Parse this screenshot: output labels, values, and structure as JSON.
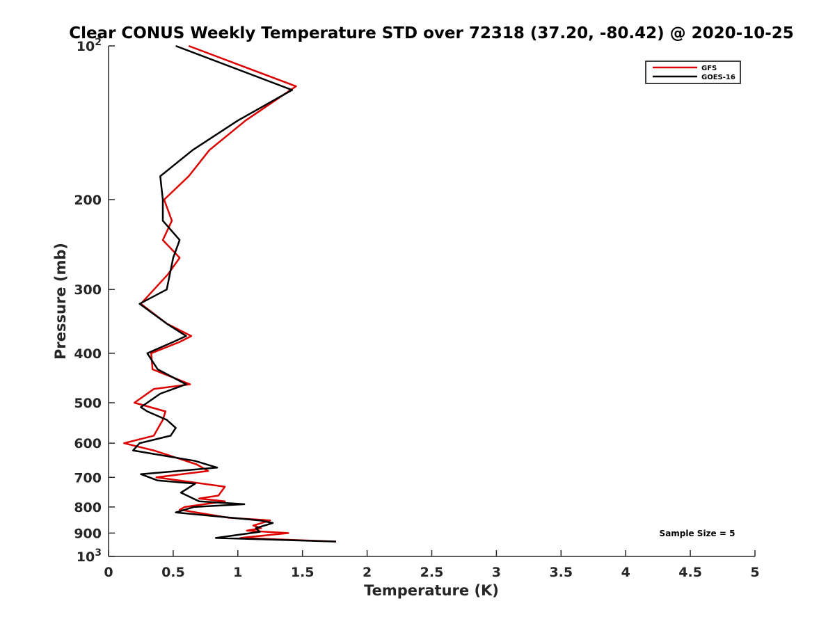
{
  "chart_data": {
    "type": "line",
    "title": "Clear CONUS Weekly Temperature STD over 72318 (37.20, -80.42) @ 2020-10-25",
    "xlabel": "Temperature (K)",
    "ylabel": "Pressure (mb)",
    "xlim": [
      0,
      5
    ],
    "ylim": [
      100,
      1000
    ],
    "y_scale": "log",
    "y_reversed": true,
    "grid": false,
    "legend_position": "top-right",
    "x_ticks": [
      0,
      0.5,
      1,
      1.5,
      2,
      2.5,
      3,
      3.5,
      4,
      4.5,
      5
    ],
    "x_tick_labels": [
      "0",
      "0.5",
      "1",
      "1.5",
      "2",
      "2.5",
      "3",
      "3.5",
      "4",
      "4.5",
      "5"
    ],
    "y_ticks": [
      100,
      200,
      300,
      400,
      500,
      600,
      700,
      800,
      900,
      1000
    ],
    "y_tick_labels": [
      {
        "base": "10",
        "sup": "2"
      },
      {
        "base": "200"
      },
      {
        "base": "300"
      },
      {
        "base": "400"
      },
      {
        "base": "500"
      },
      {
        "base": "600"
      },
      {
        "base": "700"
      },
      {
        "base": "800"
      },
      {
        "base": "900"
      },
      {
        "base": "10",
        "sup": "3"
      }
    ],
    "annotation": "Sample Size = 5",
    "series": [
      {
        "name": "GFS",
        "color": "#dd0000",
        "x": [
          0.62,
          1.45,
          1.06,
          0.78,
          0.62,
          0.43,
          0.49,
          0.42,
          0.55,
          0.46,
          0.25,
          0.45,
          0.64,
          0.55,
          0.33,
          0.34,
          0.63,
          0.35,
          0.2,
          0.44,
          0.42,
          0.35,
          0.12,
          0.35,
          0.68,
          0.77,
          0.37,
          0.9,
          0.85,
          0.7,
          0.9,
          0.59,
          0.55,
          0.93,
          1.25,
          1.12,
          1.18,
          1.07,
          1.39,
          1.02,
          1.76
        ],
        "y": [
          100,
          120,
          140,
          160,
          180,
          200,
          220,
          240,
          260,
          280,
          320,
          350,
          370,
          380,
          400,
          430,
          460,
          470,
          500,
          520,
          540,
          580,
          600,
          620,
          660,
          680,
          700,
          730,
          760,
          770,
          780,
          800,
          810,
          840,
          850,
          870,
          880,
          890,
          900,
          920,
          935
        ]
      },
      {
        "name": "GOES-16",
        "color": "#000000",
        "x": [
          0.52,
          1.42,
          1.0,
          0.65,
          0.4,
          0.42,
          0.42,
          0.55,
          0.5,
          0.45,
          0.24,
          0.45,
          0.6,
          0.5,
          0.3,
          0.38,
          0.6,
          0.4,
          0.25,
          0.3,
          0.45,
          0.52,
          0.48,
          0.24,
          0.19,
          0.67,
          0.84,
          0.25,
          0.38,
          0.67,
          0.56,
          0.7,
          1.05,
          0.66,
          0.52,
          1.17,
          1.27,
          1.14,
          1.17,
          0.83,
          1.76
        ],
        "y": [
          100,
          122,
          140,
          160,
          180,
          200,
          220,
          240,
          260,
          300,
          320,
          350,
          370,
          380,
          400,
          430,
          460,
          480,
          510,
          520,
          540,
          560,
          580,
          600,
          620,
          650,
          670,
          690,
          710,
          720,
          750,
          780,
          790,
          800,
          820,
          850,
          860,
          880,
          895,
          920,
          935
        ]
      }
    ]
  }
}
